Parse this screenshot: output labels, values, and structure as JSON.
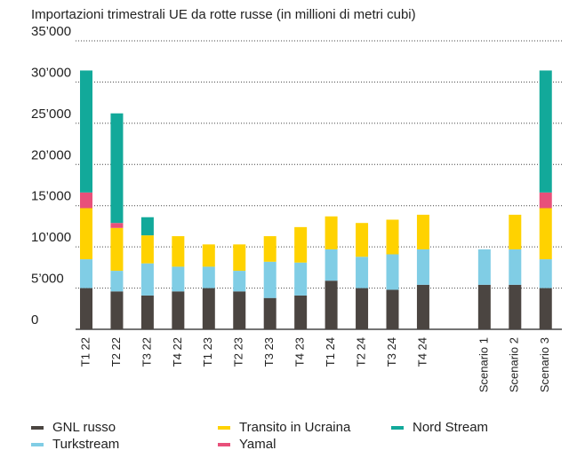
{
  "chart_data": {
    "type": "stacked_bar",
    "title": "Importazioni trimestrali UE da rotte russe (in millioni di metri cubi)",
    "categories": [
      "T1 22",
      "T2 22",
      "T3 22",
      "T4 22",
      "T1 23",
      "T2 23",
      "T3 23",
      "T4 23",
      "T1 24",
      "T2 24",
      "T3 24",
      "T4 24",
      null,
      "Scenario 1",
      "Scenario 2",
      "Scenario 3"
    ],
    "series": [
      {
        "name": "GNL russo",
        "color": "#4b4541",
        "values": [
          5000,
          4600,
          4100,
          4600,
          5000,
          4600,
          3800,
          4100,
          5900,
          5000,
          4800,
          5400,
          null,
          5400,
          5400,
          5000
        ]
      },
      {
        "name": "Turkstream",
        "color": "#80cde5",
        "values": [
          3500,
          2500,
          3900,
          3000,
          2600,
          2500,
          4400,
          4000,
          3800,
          3800,
          4300,
          4300,
          null,
          4300,
          4300,
          3500
        ]
      },
      {
        "name": "Transito in Ucraina",
        "color": "#ffd200",
        "values": [
          6200,
          5200,
          3400,
          3700,
          2700,
          3200,
          3100,
          4300,
          4000,
          4100,
          4200,
          4200,
          null,
          0,
          4200,
          6200
        ]
      },
      {
        "name": "Yamal",
        "color": "#e8507a",
        "values": [
          1900,
          600,
          0,
          0,
          0,
          0,
          0,
          0,
          0,
          0,
          0,
          0,
          null,
          0,
          0,
          1900
        ]
      },
      {
        "name": "Nord Stream",
        "color": "#12a99a",
        "values": [
          14800,
          13300,
          2200,
          0,
          0,
          0,
          0,
          0,
          0,
          0,
          0,
          0,
          null,
          0,
          0,
          14800
        ]
      }
    ],
    "ylim": [
      0,
      35000
    ],
    "yticks": [
      0,
      {
        "value": 5000,
        "label": "5’000"
      },
      {
        "value": 10000,
        "label": "10’000"
      },
      {
        "value": 15000,
        "label": "15’000"
      },
      {
        "value": 20000,
        "label": "20’000"
      },
      {
        "value": 25000,
        "label": "25’000"
      },
      {
        "value": 30000,
        "label": "30’000"
      },
      {
        "value": 35000,
        "label": "35’000"
      }
    ],
    "grid": true
  }
}
